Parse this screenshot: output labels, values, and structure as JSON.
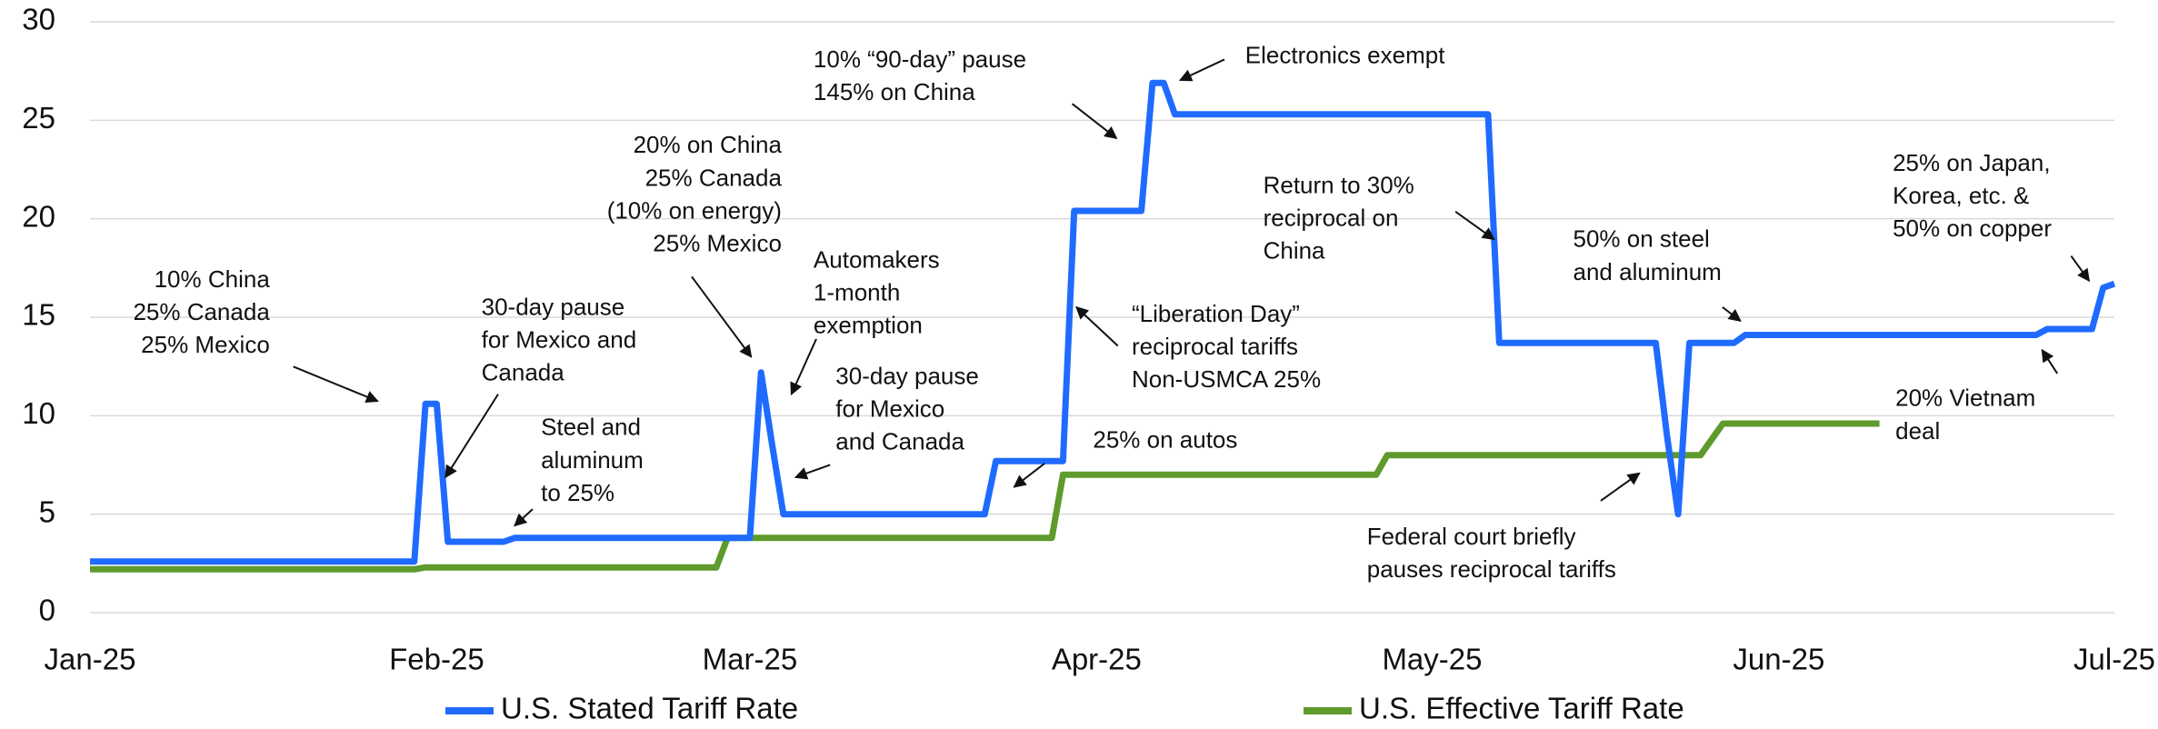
{
  "chart_data": {
    "type": "line",
    "categories": [
      "Jan-25",
      null,
      null,
      null,
      null,
      null,
      null,
      null,
      null,
      null,
      null,
      null,
      null,
      null,
      null,
      null,
      null,
      null,
      null,
      null,
      null,
      null,
      null,
      null,
      null,
      null,
      null,
      null,
      null,
      null,
      null,
      "Feb-25",
      null,
      null,
      null,
      null,
      null,
      null,
      null,
      null,
      null,
      null,
      null,
      null,
      null,
      null,
      null,
      null,
      null,
      null,
      null,
      null,
      null,
      null,
      null,
      null,
      null,
      null,
      null,
      "Mar-25",
      null,
      null,
      null,
      null,
      null,
      null,
      null,
      null,
      null,
      null,
      null,
      null,
      null,
      null,
      null,
      null,
      null,
      null,
      null,
      null,
      null,
      null,
      null,
      null,
      null,
      null,
      null,
      null,
      null,
      null,
      "Apr-25",
      null,
      null,
      null,
      null,
      null,
      null,
      null,
      null,
      null,
      null,
      null,
      null,
      null,
      null,
      null,
      null,
      null,
      null,
      null,
      null,
      null,
      null,
      null,
      null,
      null,
      null,
      null,
      null,
      null,
      "May-25",
      null,
      null,
      null,
      null,
      null,
      null,
      null,
      null,
      null,
      null,
      null,
      null,
      null,
      null,
      null,
      null,
      null,
      null,
      null,
      null,
      null,
      null,
      null,
      null,
      null,
      null,
      null,
      null,
      null,
      null,
      "Jun-25",
      null,
      null,
      null,
      null,
      null,
      null,
      null,
      null,
      null,
      null,
      null,
      null,
      null,
      null,
      null,
      null,
      null,
      null,
      null,
      null,
      null,
      null,
      null,
      null,
      null,
      null,
      null,
      null,
      null,
      "Jul-25"
    ],
    "series": [
      {
        "name": "U.S. Stated Tariff Rate",
        "color": "#1f6bff",
        "values": [
          2.6,
          2.6,
          2.6,
          2.6,
          2.6,
          2.6,
          2.6,
          2.6,
          2.6,
          2.6,
          2.6,
          2.6,
          2.6,
          2.6,
          2.6,
          2.6,
          2.6,
          2.6,
          2.6,
          2.6,
          2.6,
          2.6,
          2.6,
          2.6,
          2.6,
          2.6,
          2.6,
          2.6,
          2.6,
          2.6,
          10.6,
          10.6,
          3.6,
          3.6,
          3.6,
          3.6,
          3.6,
          3.6,
          3.8,
          3.8,
          3.8,
          3.8,
          3.8,
          3.8,
          3.8,
          3.8,
          3.8,
          3.8,
          3.8,
          3.8,
          3.8,
          3.8,
          3.8,
          3.8,
          3.8,
          3.8,
          3.8,
          3.8,
          3.8,
          3.8,
          12.2,
          8.5,
          5,
          5,
          5,
          5,
          5,
          5,
          5,
          5,
          5,
          5,
          5,
          5,
          5,
          5,
          5,
          5,
          5,
          5,
          5,
          7.7,
          7.7,
          7.7,
          7.7,
          7.7,
          7.7,
          7.7,
          20.4,
          20.4,
          20.4,
          20.4,
          20.4,
          20.4,
          20.4,
          26.9,
          26.9,
          25.3,
          25.3,
          25.3,
          25.3,
          25.3,
          25.3,
          25.3,
          25.3,
          25.3,
          25.3,
          25.3,
          25.3,
          25.3,
          25.3,
          25.3,
          25.3,
          25.3,
          25.3,
          25.3,
          25.3,
          25.3,
          25.3,
          25.3,
          25.3,
          25.3,
          25.3,
          25.3,
          25.3,
          25.3,
          13.7,
          13.7,
          13.7,
          13.7,
          13.7,
          13.7,
          13.7,
          13.7,
          13.7,
          13.7,
          13.7,
          13.7,
          13.7,
          13.7,
          13.7,
          9,
          5,
          13.7,
          13.7,
          13.7,
          13.7,
          13.7,
          14.1,
          14.1,
          14.1,
          14.1,
          14.1,
          14.1,
          14.1,
          14.1,
          14.1,
          14.1,
          14.1,
          14.1,
          14.1,
          14.1,
          14.1,
          14.1,
          14.1,
          14.1,
          14.1,
          14.1,
          14.1,
          14.1,
          14.1,
          14.1,
          14.1,
          14.1,
          14.1,
          14.4,
          14.4,
          14.4,
          14.4,
          14.4,
          16.5,
          16.7
        ]
      },
      {
        "name": "U.S. Effective Tariff Rate",
        "color": "#5e9a2c",
        "values": [
          2.2,
          2.2,
          2.2,
          2.2,
          2.2,
          2.2,
          2.2,
          2.2,
          2.2,
          2.2,
          2.2,
          2.2,
          2.2,
          2.2,
          2.2,
          2.2,
          2.2,
          2.2,
          2.2,
          2.2,
          2.2,
          2.2,
          2.2,
          2.2,
          2.2,
          2.2,
          2.2,
          2.2,
          2.2,
          2.2,
          2.3,
          2.3,
          2.3,
          2.3,
          2.3,
          2.3,
          2.3,
          2.3,
          2.3,
          2.3,
          2.3,
          2.3,
          2.3,
          2.3,
          2.3,
          2.3,
          2.3,
          2.3,
          2.3,
          2.3,
          2.3,
          2.3,
          2.3,
          2.3,
          2.3,
          2.3,
          2.3,
          3.8,
          3.8,
          3.8,
          3.8,
          3.8,
          3.8,
          3.8,
          3.8,
          3.8,
          3.8,
          3.8,
          3.8,
          3.8,
          3.8,
          3.8,
          3.8,
          3.8,
          3.8,
          3.8,
          3.8,
          3.8,
          3.8,
          3.8,
          3.8,
          3.8,
          3.8,
          3.8,
          3.8,
          3.8,
          3.8,
          7,
          7,
          7,
          7,
          7,
          7,
          7,
          7,
          7,
          7,
          7,
          7,
          7,
          7,
          7,
          7,
          7,
          7,
          7,
          7,
          7,
          7,
          7,
          7,
          7,
          7,
          7,
          7,
          7,
          8,
          8,
          8,
          8,
          8,
          8,
          8,
          8,
          8,
          8,
          8,
          8,
          8,
          8,
          8,
          8,
          8,
          8,
          8,
          8,
          8,
          8,
          8,
          8,
          8,
          8,
          8,
          8,
          8,
          8.8,
          9.6,
          9.6,
          9.6,
          9.6,
          9.6,
          9.6,
          9.6,
          9.6,
          9.6,
          9.6,
          9.6,
          9.6,
          9.6,
          9.6,
          9.6,
          null,
          null,
          null,
          null,
          null,
          null,
          null,
          null,
          null,
          null,
          null,
          null,
          null,
          null,
          null,
          null,
          null,
          null,
          null,
          null,
          null
        ]
      }
    ],
    "ylim": [
      0,
      30
    ],
    "yticks": [
      0,
      5,
      10,
      15,
      20,
      25,
      30
    ],
    "grid": true,
    "legend": "bottom",
    "annotations": [
      [
        "10% China",
        "25% Canada",
        "25% Mexico"
      ],
      [
        "30-day pause",
        "for Mexico and",
        "Canada"
      ],
      [
        "Steel and",
        "aluminum",
        "to 25%"
      ],
      [
        "20% on China",
        "25% Canada",
        "(10% on energy)",
        "25% Mexico"
      ],
      [
        "Automakers",
        "1-month",
        "exemption"
      ],
      [
        "30-day pause",
        "for Mexico",
        "and Canada"
      ],
      [
        "10% “90-day” pause",
        "145% on China"
      ],
      [
        "Electronics exempt"
      ],
      [
        "“Liberation Day”",
        "reciprocal tariffs",
        "Non-USMCA 25%"
      ],
      [
        "25% on autos"
      ],
      [
        "Return to 30%",
        "reciprocal on",
        "China"
      ],
      [
        "50% on steel",
        "and aluminum"
      ],
      [
        "25% on Japan,",
        "Korea, etc. &",
        "50% on copper"
      ],
      [
        "20% Vietnam",
        "deal"
      ],
      [
        "Federal court briefly",
        "pauses reciprocal tariffs"
      ]
    ]
  }
}
